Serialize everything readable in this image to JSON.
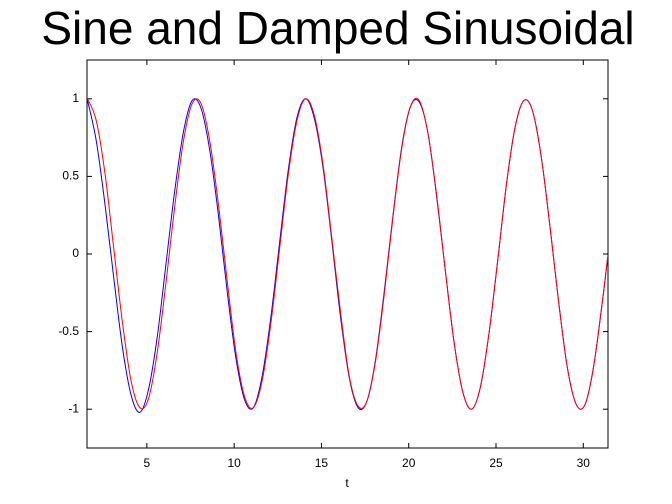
{
  "chart_data": {
    "type": "line",
    "title": "Sine and Damped Sinusoidal",
    "x_label": "t",
    "x": [
      1.6,
      2.1,
      2.6,
      3.1,
      3.6,
      4.1,
      4.6,
      5.1,
      5.6,
      6.1,
      6.6,
      7.1,
      7.6,
      8.1,
      8.6,
      9.1,
      9.6,
      10.1,
      10.6,
      11.1,
      11.6,
      12.1,
      12.6,
      13.1,
      13.6,
      14.1,
      14.6,
      15.1,
      15.6,
      16.1,
      16.6,
      17.1,
      17.6,
      18.1,
      18.6,
      19.1,
      19.6,
      20.1,
      20.6,
      21.1,
      21.6,
      22.1,
      22.6,
      23.1,
      23.6,
      24.1,
      24.6,
      25.1,
      25.6,
      26.1,
      26.6,
      27.1,
      27.6,
      28.1,
      28.6,
      29.1,
      29.6,
      30.1,
      30.6,
      31.1,
      31.4
    ],
    "series": [
      {
        "color": "#0000ff",
        "values": [
          0.99,
          0.73,
          0.32,
          -0.15,
          -0.6,
          -0.91,
          -1.02,
          -0.87,
          -0.53,
          -0.06,
          0.41,
          0.79,
          0.99,
          0.94,
          0.67,
          0.25,
          -0.24,
          -0.67,
          -0.94,
          -0.99,
          -0.79,
          -0.41,
          0.07,
          0.54,
          0.88,
          1.0,
          0.87,
          0.55,
          0.08,
          -0.41,
          -0.8,
          -0.99,
          -0.95,
          -0.68,
          -0.24,
          0.25,
          0.69,
          0.95,
          0.98,
          0.78,
          0.37,
          -0.11,
          -0.57,
          -0.89,
          -1.0,
          -0.86,
          -0.51,
          -0.04,
          0.45,
          0.82,
          0.99,
          0.92,
          0.62,
          0.17,
          -0.32,
          -0.74,
          -0.97,
          -0.97,
          -0.72,
          -0.3,
          -0.02
        ]
      },
      {
        "color": "#ff0000",
        "values": [
          1.0,
          0.86,
          0.52,
          0.04,
          -0.44,
          -0.82,
          -0.99,
          -0.93,
          -0.63,
          -0.18,
          0.31,
          0.73,
          0.97,
          0.97,
          0.73,
          0.32,
          -0.17,
          -0.63,
          -0.92,
          -0.99,
          -0.82,
          -0.45,
          0.03,
          0.51,
          0.86,
          1.0,
          0.89,
          0.57,
          0.1,
          -0.38,
          -0.79,
          -0.98,
          -0.95,
          -0.69,
          -0.26,
          0.24,
          0.68,
          0.95,
          0.99,
          0.78,
          0.38,
          -0.11,
          -0.57,
          -0.89,
          -1.0,
          -0.86,
          -0.51,
          -0.04,
          0.45,
          0.82,
          0.99,
          0.92,
          0.62,
          0.17,
          -0.32,
          -0.74,
          -0.97,
          -0.97,
          -0.72,
          -0.3,
          -0.02
        ]
      }
    ],
    "xlim": [
      1.5708,
      31.4159
    ],
    "ylim": [
      -1.25,
      1.25
    ],
    "xticks": [
      5,
      10,
      15,
      20,
      25,
      30
    ],
    "yticks": [
      -1,
      -0.5,
      0,
      0.5,
      1
    ],
    "grid": false
  }
}
